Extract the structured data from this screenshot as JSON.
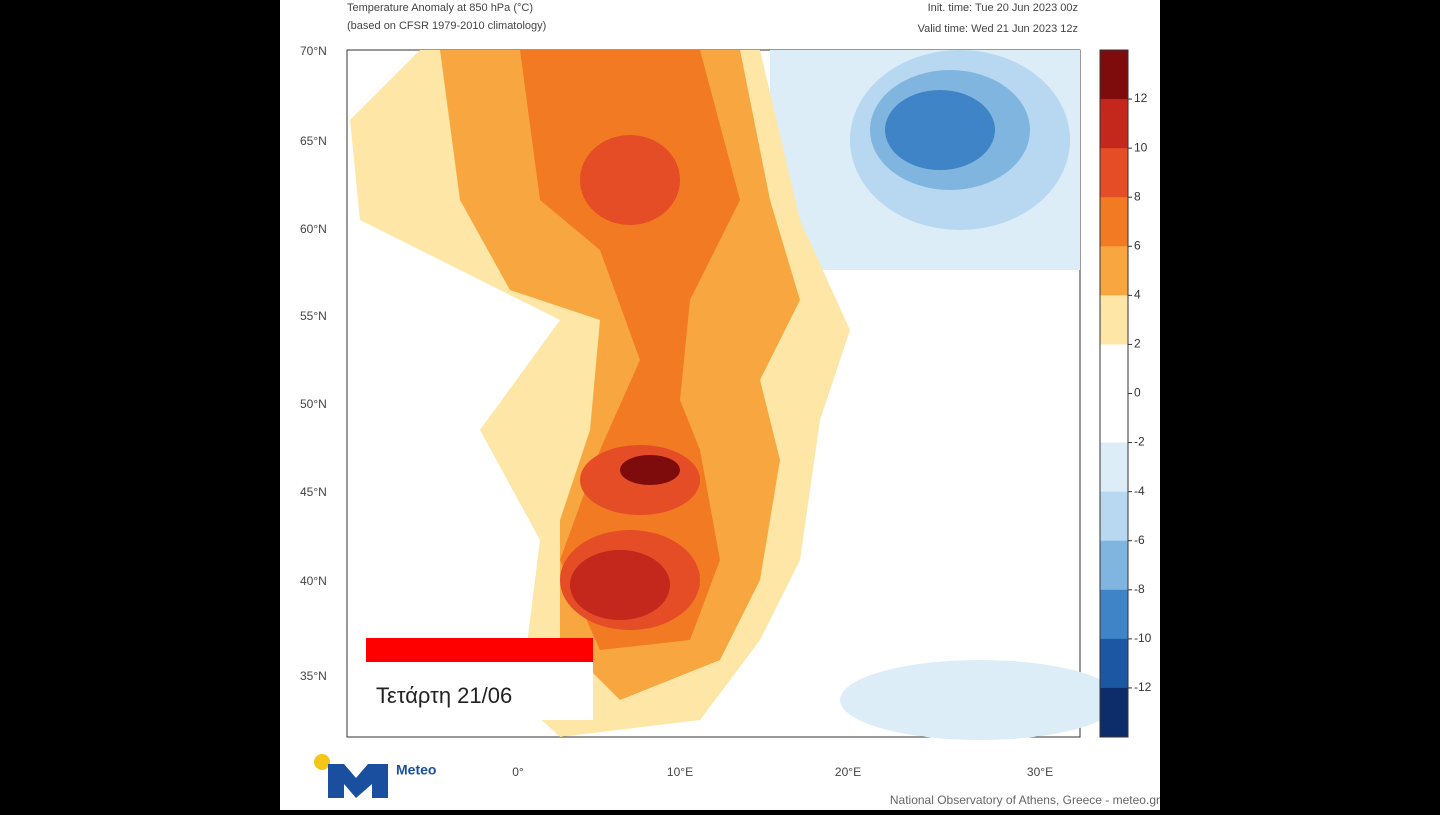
{
  "header": {
    "title": "Temperature Anomaly at 850 hPa (°C)",
    "subtitle": "(based on CFSR 1979-2010 climatology)",
    "init_time": "Init. time: Tue 20 Jun 2023 00z",
    "valid_time": "Valid time: Wed 21 Jun 2023 12z"
  },
  "map": {
    "lat_labels": [
      "70°N",
      "65°N",
      "60°N",
      "55°N",
      "50°N",
      "45°N",
      "40°N",
      "35°N"
    ],
    "lon_labels": [
      "0°",
      "10°E",
      "20°E",
      "30°E"
    ]
  },
  "colorbar": {
    "lim": [
      -14,
      14
    ],
    "ticks": [
      12,
      10,
      8,
      6,
      4,
      2,
      0,
      -2,
      -4,
      -6,
      -8,
      -10,
      -12
    ],
    "colors": [
      "#7f0c0c",
      "#c4281c",
      "#e44d26",
      "#f27a22",
      "#f8a640",
      "#fde6a6",
      "#ffffff",
      "#ffffff",
      "#dcedf8",
      "#b7d8f0",
      "#80b5e0",
      "#3f84c7",
      "#1b57a3",
      "#0d2c6a"
    ]
  },
  "caption": "Τετάρτη 21/06",
  "logo": "Meteo",
  "footer": "National Observatory of Athens, Greece - meteo.gr"
}
